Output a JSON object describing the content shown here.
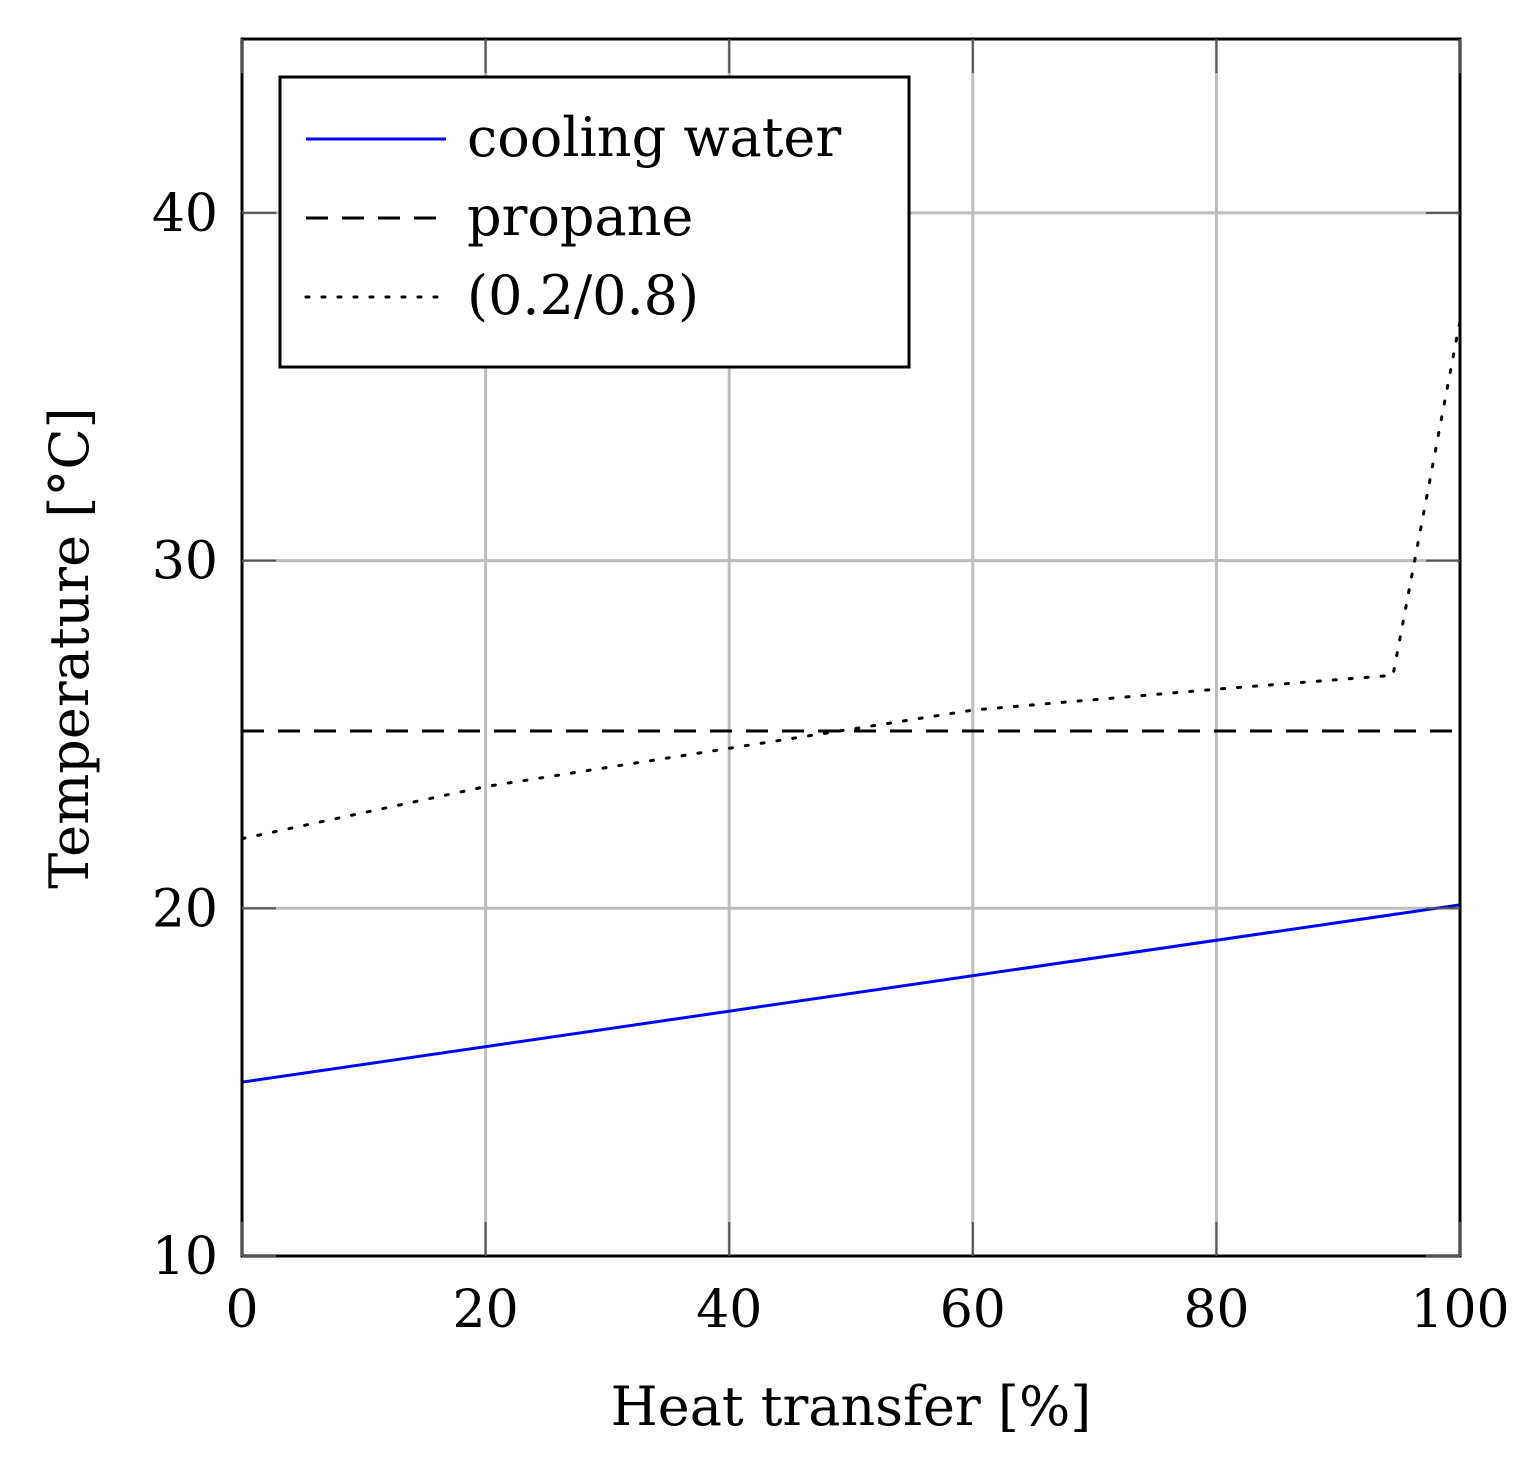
{
  "chart_data": {
    "type": "line",
    "title": "",
    "xlabel": "Heat transfer [%]",
    "ylabel": "Temperature [°C]",
    "xlim": [
      0,
      100
    ],
    "ylim": [
      10,
      45
    ],
    "xticks": [
      0,
      20,
      40,
      60,
      80,
      100
    ],
    "yticks": [
      10,
      20,
      30,
      40
    ],
    "xtick_labels": [
      "0",
      "20",
      "40",
      "60",
      "80",
      "100"
    ],
    "ytick_labels": [
      "10",
      "20",
      "30",
      "40"
    ],
    "grid": true,
    "legend_position": "top-left",
    "series": [
      {
        "name": "cooling water",
        "style": "solid",
        "color": "#0000ff",
        "x": [
          0,
          100
        ],
        "y": [
          15.0,
          20.1
        ]
      },
      {
        "name": "propane",
        "style": "dashed",
        "color": "#000000",
        "x": [
          0,
          100
        ],
        "y": [
          25.1,
          25.1
        ]
      },
      {
        "name": "(0.2/0.8)",
        "style": "dotted",
        "color": "#000000",
        "x": [
          0,
          20,
          40,
          60,
          80,
          94.5,
          100
        ],
        "y": [
          22.0,
          23.5,
          24.6,
          25.7,
          26.3,
          26.7,
          36.9
        ]
      }
    ]
  }
}
